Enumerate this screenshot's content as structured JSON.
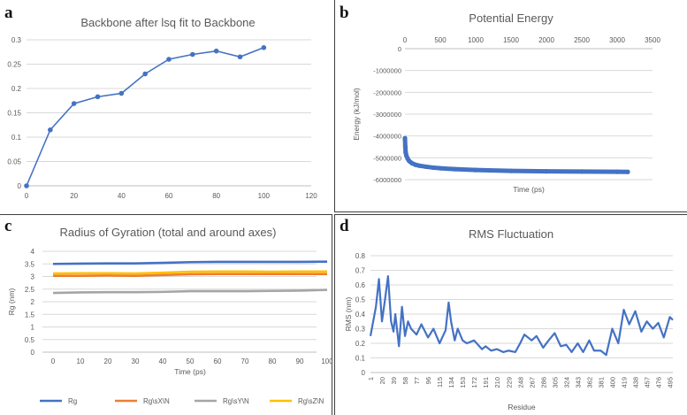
{
  "panels": {
    "a": {
      "letter": "a"
    },
    "b": {
      "letter": "b"
    },
    "c": {
      "letter": "c"
    },
    "d": {
      "letter": "d"
    }
  },
  "chart_data": [
    {
      "id": "a",
      "type": "line",
      "title": "Backbone after lsq fit to Backbone",
      "xlabel": "",
      "ylabel": "",
      "xlim": [
        0,
        120
      ],
      "ylim": [
        0,
        0.3
      ],
      "xticks": [
        0,
        20,
        40,
        60,
        80,
        100,
        120
      ],
      "yticks": [
        0,
        0.05,
        0.1,
        0.15,
        0.2,
        0.25,
        0.3
      ],
      "grid": "horizontal",
      "color": "#4472c4",
      "series": [
        {
          "x": [
            0,
            10,
            20,
            30,
            40,
            50,
            60,
            70,
            80,
            90,
            100
          ],
          "y": [
            0,
            0.115,
            0.169,
            0.183,
            0.19,
            0.23,
            0.26,
            0.27,
            0.277,
            0.265,
            0.284
          ]
        }
      ]
    },
    {
      "id": "b",
      "type": "scatter",
      "title": "Potential Energy",
      "xlabel": "Time (ps)",
      "ylabel": "Energy (kJ/mol)",
      "xlim": [
        0,
        3500
      ],
      "ylim": [
        -6000000,
        0
      ],
      "xticks": [
        0,
        500,
        1000,
        1500,
        2000,
        2500,
        3000,
        3500
      ],
      "yticks": [
        0,
        -1000000,
        -2000000,
        -3000000,
        -4000000,
        -5000000,
        -6000000
      ],
      "x_axis_position": "top",
      "grid": "horizontal",
      "color": "#4472c4",
      "series": [
        {
          "x": [
            0,
            5,
            10,
            20,
            40,
            60,
            100,
            150,
            200,
            300,
            400,
            500,
            700,
            1000,
            1500,
            2000,
            2500,
            3000,
            3150
          ],
          "y": [
            -4100000,
            -4500000,
            -4750000,
            -4900000,
            -5050000,
            -5150000,
            -5250000,
            -5320000,
            -5360000,
            -5410000,
            -5450000,
            -5480000,
            -5520000,
            -5560000,
            -5600000,
            -5620000,
            -5630000,
            -5640000,
            -5645000
          ]
        }
      ]
    },
    {
      "id": "c",
      "type": "line",
      "title": "Radius of Gyration (total and around axes)",
      "xlabel": "Time (ps)",
      "ylabel": "Rg (nm)",
      "xlim": [
        0,
        100
      ],
      "ylim": [
        0,
        4
      ],
      "xticks": [
        0,
        10,
        20,
        30,
        40,
        50,
        60,
        70,
        80,
        90,
        100
      ],
      "yticks": [
        0,
        0.5,
        1,
        1.5,
        2,
        2.5,
        3,
        3.5,
        4
      ],
      "grid": "horizontal",
      "legend": "bottom",
      "series": [
        {
          "name": "Rg",
          "color": "#4472c4",
          "x": [
            0,
            10,
            20,
            30,
            40,
            50,
            60,
            70,
            80,
            90,
            100
          ],
          "y": [
            3.5,
            3.51,
            3.52,
            3.52,
            3.54,
            3.57,
            3.58,
            3.58,
            3.58,
            3.58,
            3.59
          ]
        },
        {
          "name": "Rg\\sX\\N",
          "color": "#ed7d31",
          "x": [
            0,
            10,
            20,
            30,
            40,
            50,
            60,
            70,
            80,
            90,
            100
          ],
          "y": [
            3.03,
            3.03,
            3.04,
            3.03,
            3.06,
            3.09,
            3.1,
            3.1,
            3.1,
            3.1,
            3.1
          ]
        },
        {
          "name": "Rg\\sY\\N",
          "color": "#a5a5a5",
          "x": [
            0,
            10,
            20,
            30,
            40,
            50,
            60,
            70,
            80,
            90,
            100
          ],
          "y": [
            2.35,
            2.37,
            2.38,
            2.38,
            2.39,
            2.42,
            2.42,
            2.42,
            2.43,
            2.44,
            2.47
          ]
        },
        {
          "name": "Rg\\sZ\\N",
          "color": "#ffc000",
          "x": [
            0,
            10,
            20,
            30,
            40,
            50,
            60,
            70,
            80,
            90,
            100
          ],
          "y": [
            3.12,
            3.13,
            3.13,
            3.12,
            3.15,
            3.19,
            3.2,
            3.2,
            3.19,
            3.2,
            3.2
          ]
        }
      ]
    },
    {
      "id": "d",
      "type": "line",
      "title": "RMS Fluctuation",
      "xlabel": "Residue",
      "ylabel": "RMS (nm)",
      "ylim": [
        0,
        0.8
      ],
      "yticks": [
        0,
        0.1,
        0.2,
        0.3,
        0.4,
        0.5,
        0.6,
        0.7,
        0.8
      ],
      "categories": [
        "1",
        "20",
        "39",
        "58",
        "77",
        "96",
        "115",
        "134",
        "153",
        "172",
        "191",
        "210",
        "229",
        "248",
        "267",
        "286",
        "305",
        "324",
        "343",
        "362",
        "381",
        "400",
        "419",
        "438",
        "457",
        "476",
        "495"
      ],
      "grid": "horizontal",
      "color": "#4472c4",
      "series": [
        {
          "x": [
            1,
            10,
            15,
            20,
            25,
            30,
            35,
            39,
            42,
            48,
            53,
            58,
            63,
            68,
            77,
            85,
            96,
            105,
            115,
            125,
            130,
            134,
            140,
            145,
            153,
            160,
            172,
            185,
            191,
            200,
            210,
            220,
            229,
            240,
            248,
            255,
            267,
            275,
            286,
            295,
            305,
            315,
            324,
            333,
            343,
            352,
            362,
            370,
            381,
            390,
            400,
            410,
            419,
            428,
            438,
            448,
            457,
            467,
            476,
            485,
            495,
            500
          ],
          "y": [
            0.25,
            0.45,
            0.64,
            0.35,
            0.5,
            0.66,
            0.35,
            0.28,
            0.4,
            0.18,
            0.45,
            0.25,
            0.35,
            0.3,
            0.26,
            0.33,
            0.24,
            0.3,
            0.2,
            0.29,
            0.48,
            0.35,
            0.22,
            0.3,
            0.22,
            0.2,
            0.22,
            0.16,
            0.18,
            0.15,
            0.16,
            0.14,
            0.15,
            0.14,
            0.2,
            0.26,
            0.22,
            0.25,
            0.17,
            0.22,
            0.27,
            0.18,
            0.19,
            0.14,
            0.2,
            0.14,
            0.22,
            0.15,
            0.15,
            0.12,
            0.3,
            0.2,
            0.43,
            0.33,
            0.42,
            0.28,
            0.35,
            0.3,
            0.34,
            0.24,
            0.38,
            0.36
          ]
        }
      ]
    }
  ]
}
